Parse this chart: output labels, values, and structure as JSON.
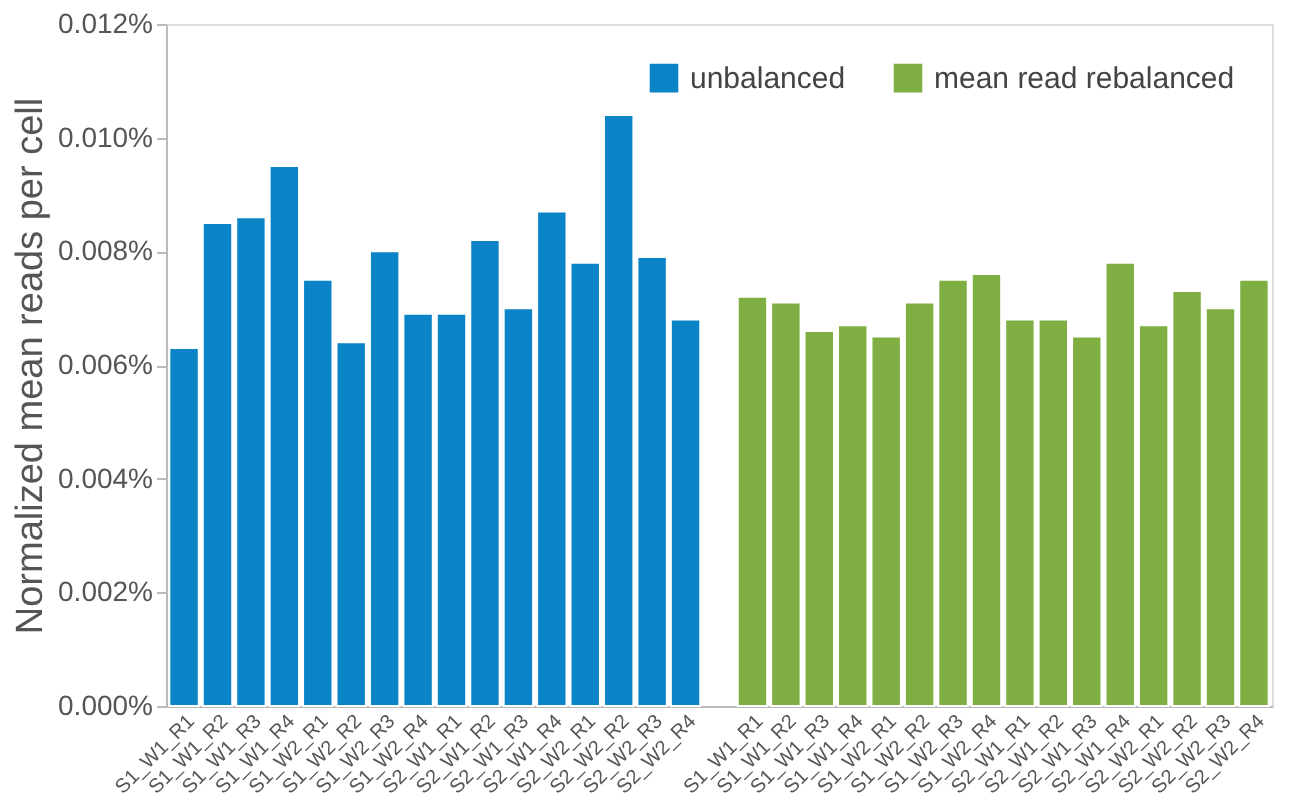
{
  "chart_data": {
    "type": "bar",
    "ylabel": "Normalized mean reads per cell",
    "categories": [
      "S1_W1_R1",
      "S1_W1_R2",
      "S1_W1_R3",
      "S1_W1_R4",
      "S1_W2_R1",
      "S1_W2_R2",
      "S1_W2_R3",
      "S1_W2_R4",
      "S2_W1_R1",
      "S2_W1_R2",
      "S2_W1_R3",
      "S2_W1_R4",
      "S2_W2_R1",
      "S2_W2_R2",
      "S2_W2_R3",
      "S2_W2_R4",
      "S1_W1_R1",
      "S1_W1_R2",
      "S1_W1_R3",
      "S1_W1_R4",
      "S1_W2_R1",
      "S1_W2_R2",
      "S1_W2_R3",
      "S1_W2_R4",
      "S2_W1_R1",
      "S2_W1_R2",
      "S2_W1_R3",
      "S2_W1_R4",
      "S2_W2_R1",
      "S2_W2_R2",
      "S2_W2_R3",
      "S2_W2_R4"
    ],
    "series": [
      {
        "name": "unbalanced",
        "color": "#0a84c6",
        "values": [
          0.0063,
          0.0085,
          0.0086,
          0.0095,
          0.0075,
          0.0064,
          0.008,
          0.0069,
          0.0069,
          0.0082,
          0.007,
          0.0087,
          0.0078,
          0.0104,
          0.0079,
          0.0068,
          null,
          null,
          null,
          null,
          null,
          null,
          null,
          null,
          null,
          null,
          null,
          null,
          null,
          null,
          null,
          null
        ]
      },
      {
        "name": "mean read rebalanced",
        "color": "#7fae42",
        "values": [
          null,
          null,
          null,
          null,
          null,
          null,
          null,
          null,
          null,
          null,
          null,
          null,
          null,
          null,
          null,
          null,
          0.0072,
          0.0071,
          0.0066,
          0.0067,
          0.0065,
          0.0071,
          0.0075,
          0.0076,
          0.0068,
          0.0068,
          0.0065,
          0.0078,
          0.0067,
          0.0073,
          0.007,
          0.0075
        ]
      }
    ],
    "ylim": [
      0,
      0.012
    ],
    "yticks": [
      {
        "value": 0,
        "label": "0.000%"
      },
      {
        "value": 0.002,
        "label": "0.002%"
      },
      {
        "value": 0.004,
        "label": "0.004%"
      },
      {
        "value": 0.006,
        "label": "0.006%"
      },
      {
        "value": 0.008,
        "label": "0.008%"
      },
      {
        "value": 0.01,
        "label": "0.010%"
      },
      {
        "value": 0.012,
        "label": "0.012%"
      }
    ],
    "grid": false,
    "legend": "top right"
  }
}
